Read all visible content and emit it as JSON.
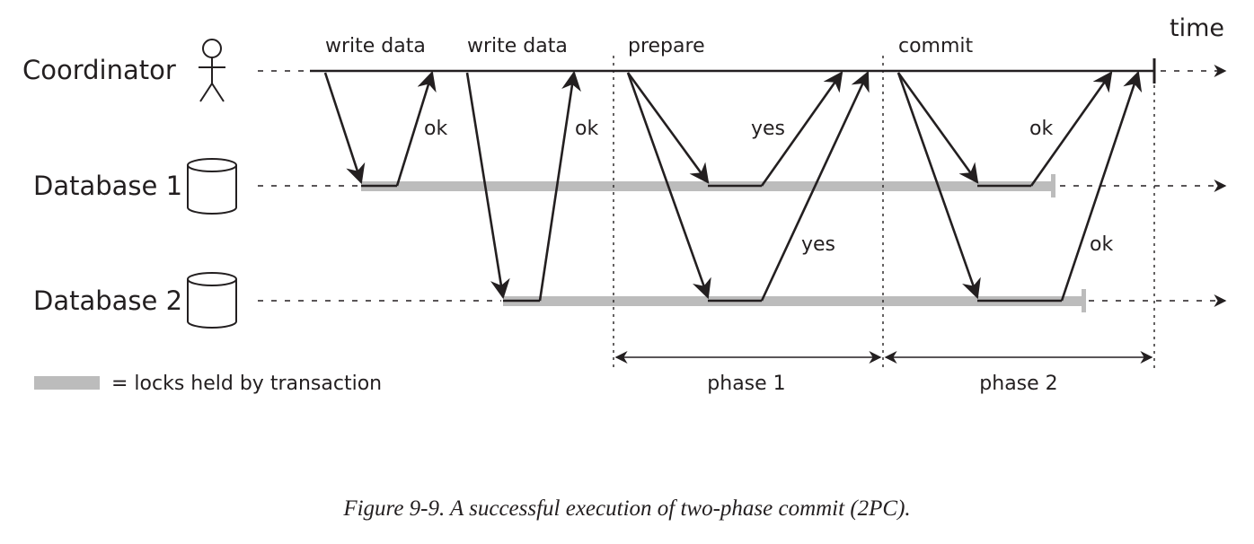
{
  "axis": {
    "time_label": "time"
  },
  "participants": {
    "coordinator": "Coordinator",
    "db1": "Database 1",
    "db2": "Database 2"
  },
  "phases": [
    {
      "id": "write1",
      "label": "write data"
    },
    {
      "id": "write2",
      "label": "write data"
    },
    {
      "id": "prepare",
      "label": "prepare"
    },
    {
      "id": "commit",
      "label": "commit"
    }
  ],
  "responses": {
    "write1_ok": "ok",
    "write2_ok": "ok",
    "prepare_yes_db1": "yes",
    "prepare_yes_db2": "yes",
    "commit_ok_db1": "ok",
    "commit_ok_db2": "ok"
  },
  "spans": {
    "phase1": "phase 1",
    "phase2": "phase 2"
  },
  "legend": {
    "text": "= locks held by transaction",
    "lock_color": "#bcbcbc"
  },
  "caption": "Figure 9-9. A successful execution of two-phase commit (2PC)."
}
